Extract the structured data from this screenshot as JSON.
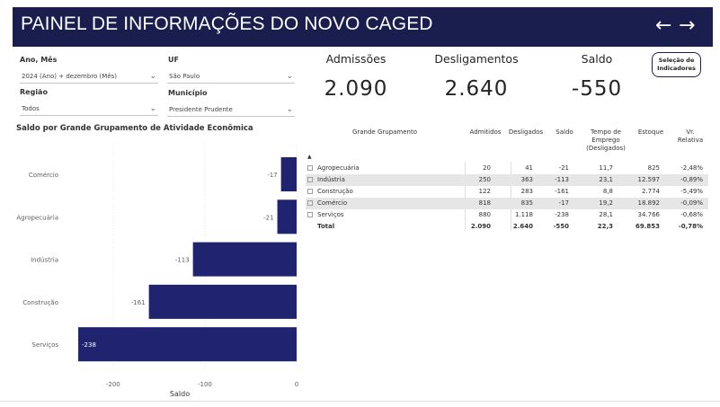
{
  "header": {
    "title": "PAINEL DE INFORMAÇÕES DO NOVO CAGED",
    "back_icon": "arrow-left-icon",
    "forward_icon": "arrow-right-icon",
    "back_glyph": "←",
    "forward_glyph": "→"
  },
  "filters": {
    "ano_mes": {
      "label": "Ano, Mês",
      "value": "2024 (Ano) + dezembro (Mês)"
    },
    "uf": {
      "label": "UF",
      "value": "São Paulo"
    },
    "regiao": {
      "label": "Região",
      "value": "Todos"
    },
    "municipio": {
      "label": "Município",
      "value": "Presidente Prudente"
    }
  },
  "kpis": {
    "admissoes": {
      "label": "Admissões",
      "value": "2.090"
    },
    "desligamentos": {
      "label": "Desligamentos",
      "value": "2.640"
    },
    "saldo": {
      "label": "Saldo",
      "value": "-550"
    }
  },
  "indicator_button": {
    "line1": "Seleção de",
    "line2": "Indicadores"
  },
  "chart_data": {
    "type": "bar",
    "orientation": "horizontal",
    "title": "Saldo por Grande Grupamento de Atividade Econômica",
    "xlabel": "Saldo",
    "ylabel": "",
    "categories": [
      "Comércio",
      "Agropecuária",
      "Indústria",
      "Construção",
      "Serviços"
    ],
    "values": [
      -17,
      -21,
      -113,
      -161,
      -238
    ],
    "xlim": [
      -240,
      0
    ],
    "xticks": [
      -200,
      -100,
      0
    ],
    "bar_color": "#1f2370",
    "grid": true
  },
  "table": {
    "headers": {
      "grupamento": "Grande Grupamento",
      "admitidos": "Admitidos",
      "desligados": "Desligados",
      "saldo": "Saldo",
      "tempo_1": "Tempo de",
      "tempo_2": "Emprego",
      "tempo_3": "(Desligados)",
      "estoque": "Estoque",
      "vr_1": "Vr.",
      "vr_2": "Relativa"
    },
    "rows": [
      {
        "name": "Agropecuária",
        "admitidos": "20",
        "desligados": "41",
        "saldo": "-21",
        "tempo": "11,7",
        "estoque": "825",
        "vr": "-2,48%"
      },
      {
        "name": "Indústria",
        "admitidos": "250",
        "desligados": "363",
        "saldo": "-113",
        "tempo": "23,1",
        "estoque": "12.597",
        "vr": "-0,89%"
      },
      {
        "name": "Construção",
        "admitidos": "122",
        "desligados": "283",
        "saldo": "-161",
        "tempo": "8,8",
        "estoque": "2.774",
        "vr": "-5,49%"
      },
      {
        "name": "Comércio",
        "admitidos": "818",
        "desligados": "835",
        "saldo": "-17",
        "tempo": "19,2",
        "estoque": "18.892",
        "vr": "-0,09%"
      },
      {
        "name": "Serviços",
        "admitidos": "880",
        "desligados": "1.118",
        "saldo": "-238",
        "tempo": "28,1",
        "estoque": "34.766",
        "vr": "-0,68%"
      }
    ],
    "total": {
      "name": "Total",
      "admitidos": "2.090",
      "desligados": "2.640",
      "saldo": "-550",
      "tempo": "22,3",
      "estoque": "69.853",
      "vr": "-0,78%"
    }
  },
  "colors": {
    "header_bg": "#1a1e4e",
    "bar": "#1f2370",
    "row_shade": "#e6e6e6"
  }
}
